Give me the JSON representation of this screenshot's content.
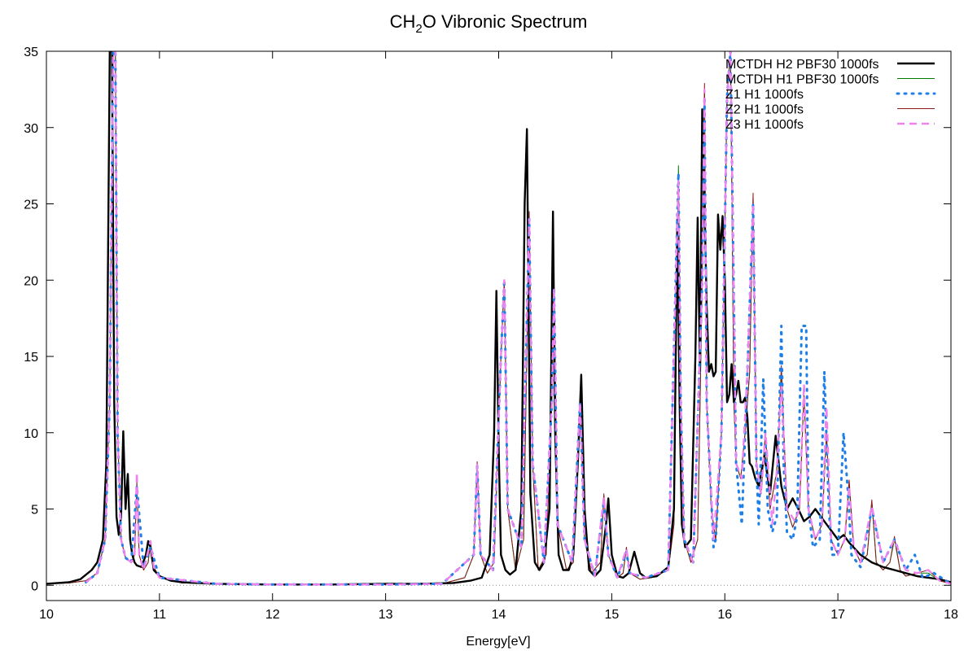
{
  "chart_data": {
    "type": "line",
    "title": "CH",
    "title_sub": "2",
    "title_rest": "O Vibronic Spectrum",
    "xlabel": "Energy[eV]",
    "ylabel": "",
    "xlim": [
      10,
      18
    ],
    "ylim": [
      -1,
      35
    ],
    "xticks": [
      10,
      11,
      12,
      13,
      14,
      15,
      16,
      17,
      18
    ],
    "xtick_labels": [
      "10",
      "11",
      "12",
      "13",
      "14",
      "15",
      "16",
      "17",
      "18"
    ],
    "yticks": [
      0,
      5,
      10,
      15,
      20,
      25,
      30,
      35
    ],
    "ytick_labels": [
      "0",
      "5",
      "10",
      "15",
      "20",
      "25",
      "30",
      "35"
    ],
    "zero_line": true,
    "legend_position": "top-right",
    "series": [
      {
        "name": "MCTDH H2 PBF30 1000fs",
        "color": "#000000",
        "style": "solid-thick",
        "x": [
          10.0,
          10.2,
          10.3,
          10.4,
          10.45,
          10.5,
          10.53,
          10.56,
          10.58,
          10.6,
          10.62,
          10.64,
          10.66,
          10.68,
          10.7,
          10.72,
          10.74,
          10.76,
          10.78,
          10.8,
          10.84,
          10.88,
          10.9,
          10.92,
          10.95,
          11.0,
          11.1,
          11.2,
          11.5,
          12.0,
          12.5,
          13.0,
          13.3,
          13.6,
          13.75,
          13.85,
          13.92,
          13.96,
          13.98,
          14.0,
          14.02,
          14.06,
          14.1,
          14.15,
          14.2,
          14.23,
          14.25,
          14.28,
          14.32,
          14.36,
          14.4,
          14.45,
          14.48,
          14.5,
          14.53,
          14.57,
          14.62,
          14.66,
          14.7,
          14.73,
          14.76,
          14.8,
          14.85,
          14.9,
          14.95,
          14.97,
          15.0,
          15.05,
          15.1,
          15.15,
          15.2,
          15.25,
          15.3,
          15.4,
          15.5,
          15.55,
          15.58,
          15.6,
          15.62,
          15.65,
          15.7,
          15.74,
          15.76,
          15.78,
          15.8,
          15.82,
          15.84,
          15.86,
          15.88,
          15.9,
          15.92,
          15.94,
          15.96,
          15.98,
          16.0,
          16.02,
          16.04,
          16.06,
          16.08,
          16.1,
          16.12,
          16.14,
          16.16,
          16.18,
          16.2,
          16.22,
          16.24,
          16.27,
          16.3,
          16.35,
          16.4,
          16.45,
          16.5,
          16.55,
          16.6,
          16.65,
          16.7,
          16.75,
          16.8,
          16.85,
          16.9,
          16.95,
          17.0,
          17.05,
          17.1,
          17.2,
          17.3,
          17.4,
          17.5,
          17.6,
          17.7,
          17.8,
          17.9,
          18.0
        ],
        "y": [
          0.1,
          0.2,
          0.4,
          1.0,
          1.5,
          3.0,
          8.0,
          35.0,
          35.0,
          12.0,
          4.5,
          3.3,
          4.5,
          10.1,
          5.0,
          7.3,
          3.0,
          2.0,
          1.5,
          1.3,
          1.2,
          2.0,
          2.9,
          2.5,
          1.0,
          0.6,
          0.3,
          0.2,
          0.1,
          0.05,
          0.05,
          0.1,
          0.1,
          0.15,
          0.3,
          0.5,
          2.0,
          10.0,
          19.3,
          9.0,
          2.0,
          1.0,
          0.7,
          1.0,
          5.0,
          25.0,
          29.9,
          6.0,
          1.5,
          1.0,
          1.5,
          5.0,
          24.5,
          10.0,
          2.0,
          1.0,
          1.0,
          2.0,
          8.0,
          13.8,
          5.0,
          1.0,
          0.6,
          1.0,
          4.0,
          5.7,
          2.0,
          0.6,
          0.5,
          0.8,
          2.2,
          0.8,
          0.5,
          0.6,
          1.2,
          5.0,
          24.0,
          12.0,
          4.0,
          2.5,
          3.0,
          15.0,
          24.1,
          14.0,
          31.2,
          25.0,
          18.3,
          14.0,
          14.5,
          13.7,
          14.0,
          24.3,
          22.0,
          24.2,
          20.0,
          12.0,
          12.5,
          14.5,
          12.0,
          12.5,
          13.4,
          12.0,
          12.0,
          12.3,
          11.0,
          8.0,
          7.8,
          7.0,
          6.5,
          8.5,
          6.0,
          9.8,
          6.5,
          5.0,
          5.7,
          5.0,
          4.2,
          4.5,
          5.0,
          4.5,
          4.0,
          3.5,
          3.0,
          3.3,
          2.8,
          2.0,
          1.5,
          1.2,
          1.0,
          0.8,
          0.6,
          0.5,
          0.4,
          0.2
        ]
      },
      {
        "name": "MCTDH H1 PBF30 1000fs",
        "color": "#007a00",
        "style": "solid-thin",
        "x": [
          10.0,
          10.2,
          10.35,
          10.45,
          10.52,
          10.56,
          10.59,
          10.61,
          10.63,
          10.66,
          10.7,
          10.75,
          10.78,
          10.8,
          10.82,
          10.86,
          10.9,
          10.92,
          10.95,
          11.0,
          11.2,
          11.5,
          12.0,
          12.5,
          13.0,
          13.5,
          13.7,
          13.78,
          13.81,
          13.84,
          13.9,
          13.96,
          14.02,
          14.05,
          14.08,
          14.15,
          14.22,
          14.27,
          14.3,
          14.35,
          14.42,
          14.47,
          14.49,
          14.52,
          14.6,
          14.66,
          14.72,
          14.76,
          14.82,
          14.9,
          14.93,
          14.97,
          15.05,
          15.1,
          15.13,
          15.16,
          15.25,
          15.35,
          15.5,
          15.55,
          15.59,
          15.61,
          15.64,
          15.7,
          15.76,
          15.8,
          15.82,
          15.84,
          15.88,
          15.92,
          15.97,
          16.02,
          16.05,
          16.08,
          16.1,
          16.14,
          16.18,
          16.22,
          16.25,
          16.28,
          16.32,
          16.36,
          16.4,
          16.46,
          16.5,
          16.55,
          16.6,
          16.66,
          16.7,
          16.74,
          16.8,
          16.86,
          16.9,
          16.94,
          17.0,
          17.06,
          17.1,
          17.14,
          17.2,
          17.26,
          17.3,
          17.34,
          17.4,
          17.46,
          17.5,
          17.55,
          17.6,
          17.7,
          17.8,
          17.9,
          18.0
        ],
        "y": [
          0.1,
          0.15,
          0.3,
          0.8,
          3.0,
          12.0,
          35.0,
          35.0,
          10.0,
          3.0,
          1.8,
          1.5,
          2.0,
          6.5,
          2.0,
          1.0,
          1.5,
          2.8,
          1.2,
          0.5,
          0.15,
          0.1,
          0.05,
          0.05,
          0.05,
          0.1,
          0.5,
          2.0,
          8.0,
          2.0,
          0.8,
          1.5,
          15.0,
          20.0,
          5.0,
          1.0,
          3.0,
          24.0,
          8.0,
          1.0,
          2.0,
          12.0,
          19.5,
          4.0,
          1.0,
          1.5,
          12.0,
          3.0,
          0.8,
          1.5,
          5.8,
          2.0,
          0.5,
          0.8,
          2.4,
          0.8,
          0.4,
          0.5,
          1.0,
          4.0,
          27.5,
          12.0,
          3.0,
          1.5,
          3.0,
          20.0,
          32.5,
          12.0,
          5.0,
          3.0,
          10.0,
          32.0,
          35.0,
          12.0,
          8.0,
          7.0,
          10.0,
          14.0,
          25.5,
          8.0,
          6.0,
          10.0,
          5.0,
          7.5,
          14.0,
          5.0,
          3.8,
          5.0,
          12.5,
          5.0,
          3.0,
          4.0,
          10.0,
          3.0,
          2.0,
          3.0,
          6.5,
          2.5,
          1.5,
          2.0,
          5.5,
          1.5,
          1.0,
          1.5,
          3.0,
          1.0,
          0.6,
          0.8,
          0.8,
          0.3,
          0.1
        ]
      },
      {
        "name": "Z1 H1 1000fs",
        "color": "#1f7fe8",
        "style": "dotted",
        "x": [
          10.35,
          10.45,
          10.52,
          10.56,
          10.59,
          10.61,
          10.63,
          10.66,
          10.7,
          10.75,
          10.8,
          10.86,
          10.92,
          11.0,
          11.5,
          12.0,
          12.5,
          13.0,
          13.5,
          13.78,
          13.81,
          13.84,
          13.95,
          14.02,
          14.05,
          14.08,
          14.2,
          14.27,
          14.3,
          14.4,
          14.47,
          14.49,
          14.52,
          14.65,
          14.72,
          14.76,
          14.85,
          14.93,
          14.97,
          15.05,
          15.13,
          15.16,
          15.3,
          15.5,
          15.59,
          15.61,
          15.64,
          15.72,
          15.8,
          15.82,
          15.84,
          15.9,
          15.92,
          15.97,
          16.02,
          16.05,
          16.1,
          16.15,
          16.2,
          16.25,
          16.28,
          16.3,
          16.34,
          16.38,
          16.42,
          16.46,
          16.5,
          16.52,
          16.55,
          16.6,
          16.64,
          16.68,
          16.72,
          16.74,
          16.78,
          16.84,
          16.88,
          16.92,
          16.95,
          17.0,
          17.05,
          17.09,
          17.12,
          17.2,
          17.3,
          17.4,
          17.5,
          17.6,
          17.68,
          17.75,
          17.85,
          18.0
        ],
        "y": [
          0.2,
          0.8,
          3.0,
          12.0,
          35.0,
          35.0,
          10.0,
          3.0,
          1.8,
          1.5,
          6.5,
          1.2,
          2.5,
          0.5,
          0.1,
          0.05,
          0.05,
          0.05,
          0.1,
          2.0,
          7.8,
          2.0,
          1.0,
          15.0,
          20.0,
          5.0,
          2.5,
          24.0,
          8.0,
          1.5,
          12.0,
          19.5,
          4.0,
          1.5,
          12.0,
          3.0,
          0.6,
          5.5,
          2.0,
          0.5,
          2.2,
          0.8,
          0.5,
          1.0,
          27.0,
          12.0,
          3.0,
          1.5,
          20.0,
          32.0,
          12.0,
          2.5,
          3.0,
          10.0,
          32.0,
          35.0,
          8.0,
          4.0,
          14.0,
          25.0,
          8.0,
          4.0,
          13.5,
          5.0,
          3.5,
          4.5,
          17.0,
          8.0,
          3.5,
          3.0,
          4.5,
          17.0,
          17.0,
          5.0,
          2.5,
          3.0,
          14.0,
          5.0,
          2.0,
          2.0,
          10.0,
          6.0,
          2.0,
          1.2,
          5.0,
          1.5,
          3.0,
          1.0,
          2.0,
          0.5,
          0.8,
          0.1
        ]
      },
      {
        "name": "Z2 H1 1000fs",
        "color": "#8b1a1a",
        "style": "solid-thin",
        "x": [
          10.0,
          10.2,
          10.35,
          10.45,
          10.52,
          10.56,
          10.59,
          10.61,
          10.63,
          10.66,
          10.7,
          10.75,
          10.78,
          10.8,
          10.82,
          10.86,
          10.9,
          10.92,
          10.95,
          11.0,
          11.2,
          11.5,
          12.0,
          12.5,
          13.0,
          13.5,
          13.7,
          13.78,
          13.81,
          13.84,
          13.9,
          13.96,
          14.02,
          14.05,
          14.08,
          14.15,
          14.22,
          14.27,
          14.3,
          14.35,
          14.42,
          14.47,
          14.49,
          14.52,
          14.6,
          14.66,
          14.72,
          14.76,
          14.82,
          14.9,
          14.93,
          14.97,
          15.05,
          15.1,
          15.13,
          15.16,
          15.25,
          15.35,
          15.5,
          15.55,
          15.59,
          15.61,
          15.64,
          15.7,
          15.76,
          15.8,
          15.82,
          15.84,
          15.88,
          15.92,
          15.97,
          16.02,
          16.05,
          16.08,
          16.1,
          16.14,
          16.18,
          16.22,
          16.25,
          16.28,
          16.32,
          16.36,
          16.4,
          16.46,
          16.5,
          16.55,
          16.6,
          16.66,
          16.7,
          16.74,
          16.8,
          16.86,
          16.9,
          16.94,
          17.0,
          17.06,
          17.1,
          17.14,
          17.2,
          17.26,
          17.3,
          17.34,
          17.4,
          17.46,
          17.5,
          17.55,
          17.6,
          17.7,
          17.8,
          17.9,
          18.0
        ],
        "y": [
          0.1,
          0.15,
          0.3,
          0.8,
          3.0,
          12.0,
          35.0,
          35.0,
          10.0,
          3.0,
          1.8,
          1.5,
          2.0,
          6.8,
          2.0,
          1.0,
          1.5,
          2.9,
          1.2,
          0.5,
          0.15,
          0.1,
          0.05,
          0.05,
          0.05,
          0.1,
          0.5,
          2.0,
          8.1,
          2.0,
          0.8,
          1.5,
          15.0,
          20.0,
          5.0,
          1.0,
          3.0,
          24.5,
          8.0,
          1.0,
          2.0,
          12.0,
          19.8,
          4.0,
          1.0,
          1.5,
          12.2,
          3.0,
          0.8,
          1.5,
          6.0,
          2.0,
          0.5,
          0.8,
          2.5,
          0.8,
          0.4,
          0.5,
          1.0,
          4.0,
          26.5,
          12.0,
          3.0,
          1.5,
          3.0,
          20.0,
          32.9,
          12.0,
          5.0,
          3.0,
          10.0,
          32.0,
          35.0,
          12.0,
          8.0,
          7.0,
          10.0,
          14.0,
          25.7,
          8.0,
          6.0,
          10.0,
          5.0,
          7.5,
          14.4,
          5.0,
          3.8,
          5.0,
          12.5,
          5.0,
          3.0,
          4.0,
          10.0,
          3.0,
          2.0,
          3.0,
          6.9,
          2.5,
          1.5,
          2.0,
          5.6,
          1.5,
          1.0,
          1.5,
          3.2,
          1.0,
          0.6,
          0.8,
          1.0,
          0.3,
          0.1
        ]
      },
      {
        "name": "Z3 H1 1000fs",
        "color": "#ee82ee",
        "style": "dashed-thick",
        "x": [
          10.35,
          10.45,
          10.52,
          10.56,
          10.59,
          10.61,
          10.63,
          10.66,
          10.7,
          10.75,
          10.78,
          10.8,
          10.82,
          10.86,
          10.92,
          10.95,
          11.0,
          11.5,
          12.0,
          12.5,
          13.0,
          13.5,
          13.78,
          13.81,
          13.84,
          13.95,
          14.02,
          14.05,
          14.08,
          14.2,
          14.27,
          14.3,
          14.4,
          14.47,
          14.49,
          14.52,
          14.65,
          14.72,
          14.76,
          14.85,
          14.93,
          14.97,
          15.05,
          15.13,
          15.16,
          15.3,
          15.5,
          15.59,
          15.61,
          15.64,
          15.72,
          15.8,
          15.82,
          15.84,
          15.9,
          15.97,
          16.02,
          16.05,
          16.1,
          16.15,
          16.2,
          16.25,
          16.28,
          16.32,
          16.36,
          16.42,
          16.46,
          16.5,
          16.55,
          16.62,
          16.66,
          16.7,
          16.74,
          16.8,
          16.86,
          16.9,
          16.94,
          17.0,
          17.06,
          17.1,
          17.14,
          17.2,
          17.3,
          17.4,
          17.5,
          17.6,
          17.7,
          17.8,
          17.9,
          18.0
        ],
        "y": [
          0.2,
          0.8,
          3.0,
          12.0,
          35.0,
          35.0,
          10.0,
          3.0,
          1.8,
          1.5,
          2.0,
          7.4,
          2.0,
          1.0,
          2.9,
          1.2,
          0.5,
          0.1,
          0.05,
          0.05,
          0.05,
          0.1,
          2.0,
          7.9,
          2.0,
          1.0,
          15.0,
          20.0,
          5.0,
          2.5,
          24.0,
          8.0,
          1.5,
          12.0,
          19.5,
          4.0,
          1.5,
          12.0,
          3.0,
          0.6,
          5.8,
          2.0,
          0.5,
          2.4,
          0.8,
          0.5,
          1.0,
          26.5,
          12.0,
          3.0,
          1.5,
          20.0,
          32.5,
          12.0,
          3.0,
          10.0,
          32.0,
          35.0,
          8.0,
          7.0,
          14.0,
          25.0,
          8.0,
          6.0,
          10.0,
          4.0,
          7.5,
          13.0,
          5.0,
          4.2,
          5.0,
          13.2,
          5.0,
          3.0,
          4.0,
          11.7,
          3.0,
          2.0,
          3.0,
          6.5,
          2.5,
          1.5,
          5.2,
          1.5,
          3.0,
          1.0,
          0.8,
          1.0,
          0.3,
          0.1
        ]
      }
    ]
  }
}
